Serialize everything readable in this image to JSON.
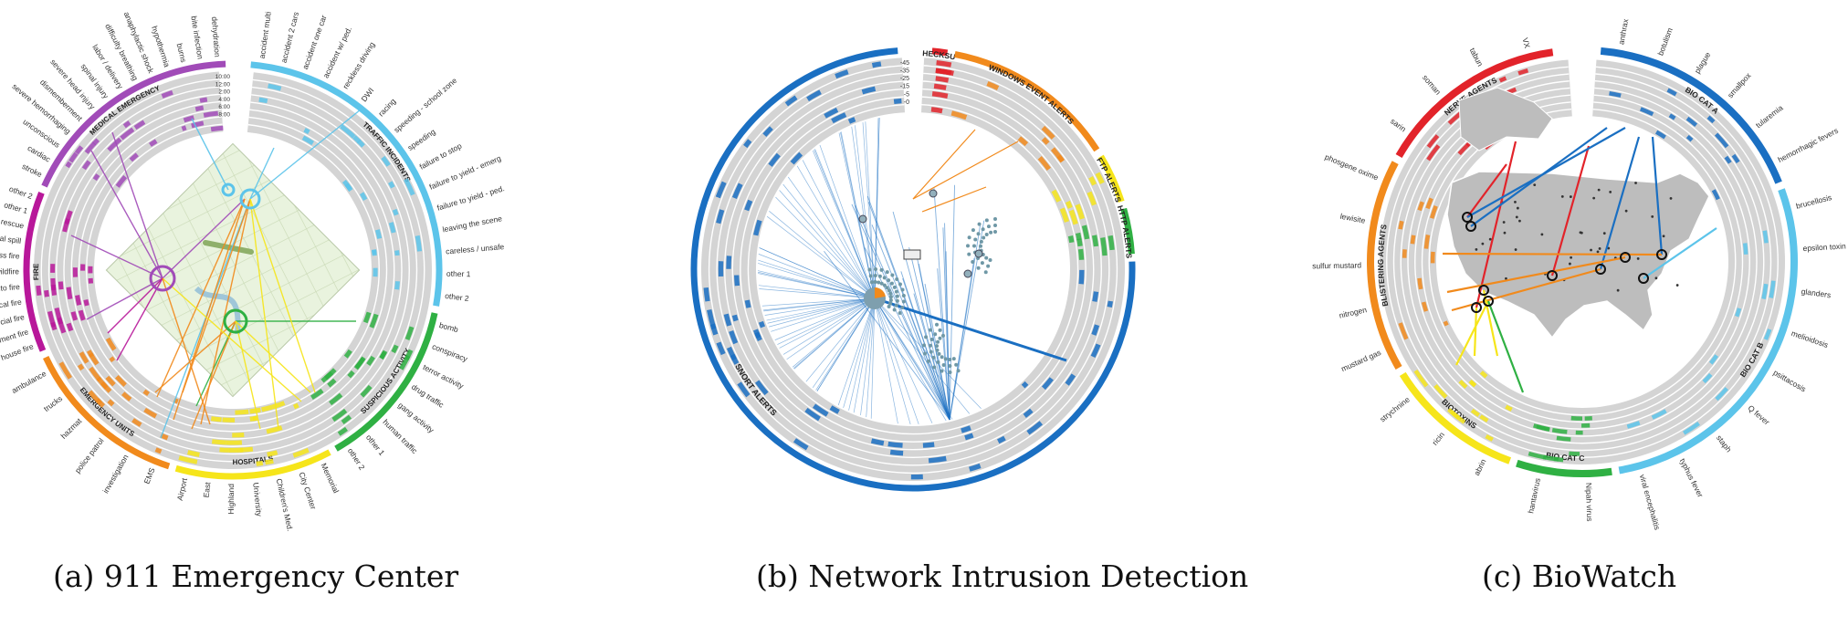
{
  "colors": {
    "purple": "#a14bb8",
    "magenta": "#b8179a",
    "lightblue": "#5cc4ea",
    "green": "#2fb043",
    "yellow": "#f6e51a",
    "orange": "#f18a1c",
    "red": "#e2232a",
    "blue": "#1a6fc2",
    "ring": "#d4d4d4",
    "ringline": "#ffffff"
  },
  "captions": {
    "a": "(a) 911 Emergency Center",
    "b": "(b) Network Intrusion Detection",
    "c": "(c) BioWatch"
  },
  "panel_a": {
    "time_labels": [
      "10:00",
      "12:00",
      "2:00",
      "4:00",
      "6:00",
      "8:00"
    ],
    "groups": [
      {
        "name": "TRAFFIC INCIDENTS",
        "color": "lightblue",
        "start": 5,
        "end": 100,
        "labels": [
          "accident multi",
          "accident 2 cars",
          "accident one car",
          "accident w/ ped.",
          "reckless driving",
          "DWI",
          "racing",
          "speeding - school zone",
          "speeding",
          "failure to stop",
          "failure to yield - emerg",
          "failure to yield - ped.",
          "leaving the scene",
          "careless / unsafe",
          "other 1",
          "other 2"
        ]
      },
      {
        "name": "SUSPICIOUS ACTIVITY",
        "color": "green",
        "start": 102,
        "end": 150,
        "labels": [
          "bomb",
          "conspiracy",
          "terror activity",
          "drug traffic",
          "gang activity",
          "human traffic",
          "other 1",
          "other 2"
        ]
      },
      {
        "name": "HOSPITALS",
        "color": "yellow",
        "start": 152,
        "end": 196,
        "labels": [
          "Memorial",
          "City Center",
          "Children's Med.",
          "University",
          "Highland",
          "East",
          "Airport"
        ]
      },
      {
        "name": "EMERGENCY UNITS",
        "color": "orange",
        "start": 198,
        "end": 245,
        "labels": [
          "EMS",
          "investigation",
          "police patrol",
          "hazmat",
          "trucks",
          "ambulance"
        ]
      },
      {
        "name": "FIRE",
        "color": "magenta",
        "start": 247,
        "end": 292,
        "labels": [
          "house fire",
          "apartment fire",
          "commercial fire",
          "chemical fire",
          "auto fire",
          "wildfire",
          "grass fire",
          "chemical spill",
          "fire & rescue",
          "other 1",
          "other 2"
        ]
      },
      {
        "name": "MEDICAL EMERGENCY",
        "color": "purple",
        "start": 294,
        "end": 358,
        "labels": [
          "stroke",
          "cardiac",
          "unconscious",
          "severe hemorrhaging",
          "dismemberment",
          "severe head injury",
          "spinal injury",
          "labor / delivery",
          "difficulty breathing",
          "anaphylactic shock",
          "hypothermia",
          "burns",
          "bite infection",
          "dehydration"
        ]
      }
    ]
  },
  "panel_b": {
    "scale_labels": [
      "-45",
      "-35",
      "-25",
      "-15",
      "-5",
      "-0"
    ],
    "groups": [
      {
        "name": "CHECKSUM",
        "color": "red",
        "start": 5,
        "end": 9
      },
      {
        "name": "WINDOWS EVENT ALERTS",
        "color": "orange",
        "start": 11,
        "end": 57
      },
      {
        "name": "FTP ALERTS",
        "color": "yellow",
        "start": 59,
        "end": 72
      },
      {
        "name": "HTTP ALERTS",
        "color": "green",
        "start": 74,
        "end": 86
      },
      {
        "name": "SNORT ALERTS",
        "color": "blue",
        "start": 88,
        "end": 356
      }
    ]
  },
  "panel_c": {
    "groups": [
      {
        "name": "BIO CAT A",
        "color": "blue",
        "start": 5,
        "end": 68,
        "labels": [
          "anthrax",
          "botulism",
          "plague",
          "smallpox",
          "tularemia",
          "hemorrhagic fevers"
        ]
      },
      {
        "name": "BIO CAT B",
        "color": "lightblue",
        "start": 70,
        "end": 170,
        "labels": [
          "brucellosis",
          "epsilon toxin",
          "glanders",
          "melioidosis",
          "psittacosis",
          "Q fever",
          "staph",
          "typhus fever",
          "viral encephalitis"
        ]
      },
      {
        "name": "BIO CAT C",
        "color": "green",
        "start": 172,
        "end": 198,
        "labels": [
          "Nipah virus",
          "hantavirus"
        ]
      },
      {
        "name": "BIOTOXINS",
        "color": "yellow",
        "start": 200,
        "end": 238,
        "labels": [
          "abrin",
          "ricin",
          "strychnine"
        ]
      },
      {
        "name": "BLISTERING AGENTS",
        "color": "orange",
        "start": 240,
        "end": 298,
        "labels": [
          "mustard gas",
          "nitrogen",
          "sulfur mustard",
          "lewisite",
          "phosgene oxime"
        ]
      },
      {
        "name": "NERVE AGENTS",
        "color": "red",
        "start": 300,
        "end": 352,
        "labels": [
          "sarin",
          "soman",
          "tabun",
          "VX"
        ]
      }
    ]
  }
}
